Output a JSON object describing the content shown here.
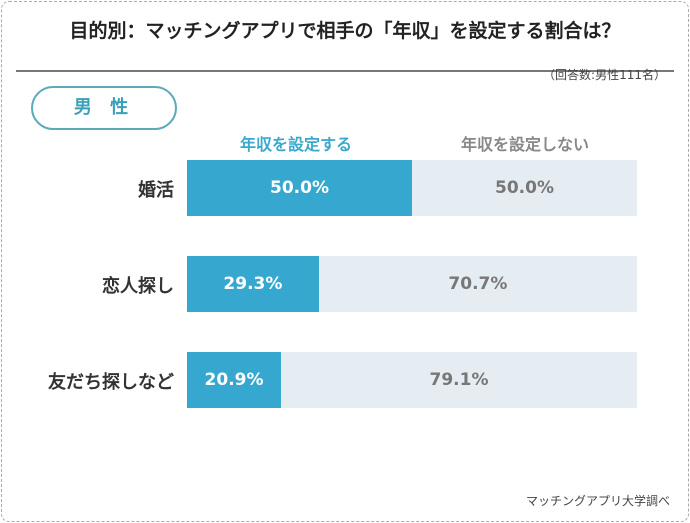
{
  "chart_data": {
    "type": "bar",
    "stacked": true,
    "orientation": "horizontal",
    "title": "目的別：マッチングアプリで相手の「年収」を設定する割合は？",
    "note": "（回答数:男性111名）",
    "group_label": "男 性",
    "legend": [
      "年収を設定する",
      "年収を設定しない"
    ],
    "categories": [
      "婚活",
      "恋人探し",
      "友だち探しなど"
    ],
    "series": [
      {
        "name": "年収を設定する",
        "values": [
          50.0,
          29.3,
          20.9
        ],
        "labels": [
          "50.0%",
          "29.3%",
          "20.9%"
        ]
      },
      {
        "name": "年収を設定しない",
        "values": [
          50.0,
          70.7,
          79.1
        ],
        "labels": [
          "50.0%",
          "70.7%",
          "79.1%"
        ]
      }
    ],
    "xlim": [
      0,
      100
    ],
    "source": "マッチングアプリ大学調べ",
    "colors": {
      "set": "#36a8cf",
      "not_set": "#e6edf2"
    }
  }
}
